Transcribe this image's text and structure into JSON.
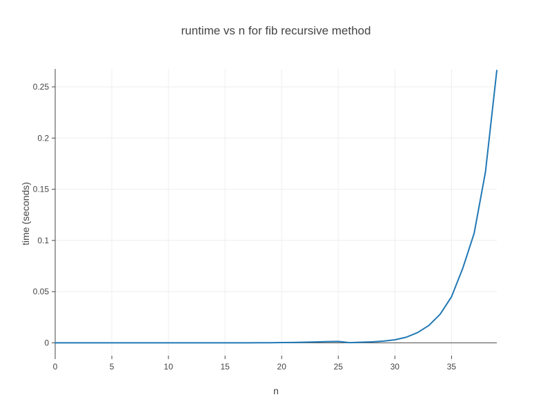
{
  "chart_data": {
    "type": "line",
    "title": "runtime vs n for fib recursive method",
    "xlabel": "n",
    "ylabel": "time (seconds)",
    "xlim": [
      0,
      39
    ],
    "ylim": [
      -0.0125,
      0.2675
    ],
    "x_ticks": [
      0,
      5,
      10,
      15,
      20,
      25,
      30,
      35
    ],
    "x_tick_labels": [
      "0",
      "5",
      "10",
      "15",
      "20",
      "25",
      "30",
      "35"
    ],
    "y_ticks": [
      0,
      0.05,
      0.1,
      0.15,
      0.2,
      0.25
    ],
    "y_tick_labels": [
      "0",
      "0.05",
      "0.1",
      "0.15",
      "0.2",
      "0.25"
    ],
    "grid": true,
    "legend": false,
    "series": [
      {
        "color": "#1f77b4",
        "x": [
          0,
          1,
          2,
          3,
          4,
          5,
          6,
          7,
          8,
          9,
          10,
          11,
          12,
          13,
          14,
          15,
          16,
          17,
          18,
          19,
          20,
          21,
          22,
          23,
          24,
          25,
          26,
          27,
          28,
          29,
          30,
          31,
          32,
          33,
          34,
          35,
          36,
          37,
          38,
          39
        ],
        "y": [
          0,
          0,
          0,
          0,
          0,
          0,
          0,
          0,
          0,
          0,
          0,
          0,
          0,
          1e-05,
          2e-05,
          3e-05,
          4e-05,
          6e-05,
          0.0001,
          0.00015,
          0.00025,
          0.0004,
          0.0006,
          0.0009,
          0.0012,
          0.0014,
          0.0002,
          0.0006,
          0.001,
          0.0017,
          0.003,
          0.0055,
          0.01,
          0.017,
          0.028,
          0.045,
          0.073,
          0.107,
          0.167,
          0.266
        ]
      }
    ]
  }
}
